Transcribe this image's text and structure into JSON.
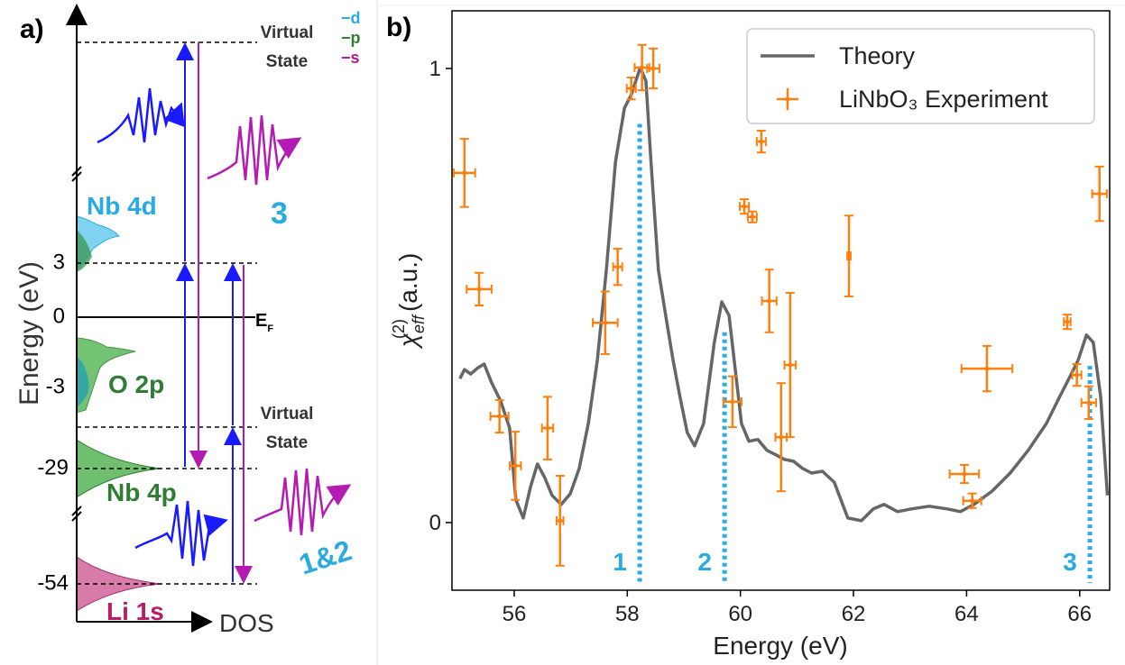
{
  "diagram": {
    "label": "a)",
    "axis_label": "Energy (eV)",
    "x_axis_label": "DOS",
    "ticks": [
      "3",
      "0",
      "-3",
      "-29",
      "-54"
    ],
    "virtual_state_top": [
      "Virtual",
      "State"
    ],
    "virtual_state_bottom": [
      "Virtual",
      "State"
    ],
    "orbital_legend": [
      "−d",
      "−p",
      "−s"
    ],
    "fermi": {
      "base": "E",
      "sub": "F"
    },
    "bands": [
      "Nb 4d",
      "O 2p",
      "Nb 4p",
      "Li 1s"
    ],
    "processes": [
      "3",
      "1&2"
    ]
  },
  "chart_data": {
    "type": "line",
    "title": "b)",
    "xlabel": "Energy (eV)",
    "ylabel": {
      "symbol": "χ",
      "subscript": "eff",
      "superscript": "(2)",
      "unit": "(a.u.)"
    },
    "xlim": [
      54.9,
      66.53
    ],
    "ylim": [
      -0.149,
      1.127
    ],
    "xticks": [
      56,
      58,
      60,
      62,
      64,
      66
    ],
    "yticks": [
      0,
      1
    ],
    "legend": "upper right",
    "series": [
      {
        "name": "Theory",
        "type": "line",
        "color": "#666666",
        "x": [
          55.04,
          55.12,
          55.23,
          55.36,
          55.47,
          55.6,
          55.76,
          55.92,
          56.03,
          56.16,
          56.29,
          56.41,
          56.54,
          56.67,
          56.83,
          56.99,
          57.15,
          57.31,
          57.47,
          57.63,
          57.79,
          57.95,
          58.07,
          58.23,
          58.33,
          58.42,
          58.55,
          58.68,
          58.81,
          58.93,
          59.06,
          59.19,
          59.35,
          59.54,
          59.67,
          59.8,
          59.91,
          60.02,
          60.15,
          60.31,
          60.47,
          60.63,
          60.78,
          60.94,
          61.1,
          61.26,
          61.45,
          61.66,
          61.9,
          62.14,
          62.35,
          62.54,
          62.78,
          63.02,
          63.34,
          63.66,
          63.89,
          64.13,
          64.45,
          64.77,
          65.09,
          65.41,
          65.65,
          65.81,
          65.97,
          66.12,
          66.24,
          66.37,
          66.49
        ],
        "values": [
          0.317,
          0.337,
          0.327,
          0.341,
          0.349,
          0.308,
          0.268,
          0.208,
          0.05,
          0.01,
          0.079,
          0.129,
          0.099,
          0.06,
          0.04,
          0.063,
          0.119,
          0.218,
          0.357,
          0.556,
          0.794,
          0.913,
          0.942,
          1.002,
          0.972,
          0.794,
          0.556,
          0.456,
          0.357,
          0.278,
          0.198,
          0.169,
          0.218,
          0.397,
          0.486,
          0.456,
          0.337,
          0.218,
          0.179,
          0.183,
          0.159,
          0.149,
          0.139,
          0.135,
          0.119,
          0.109,
          0.113,
          0.089,
          0.01,
          0.004,
          0.03,
          0.04,
          0.024,
          0.03,
          0.036,
          0.03,
          0.024,
          0.04,
          0.069,
          0.109,
          0.159,
          0.218,
          0.278,
          0.317,
          0.357,
          0.413,
          0.397,
          0.278,
          0.06
        ]
      },
      {
        "name": "LiNbO₃ Experiment",
        "type": "errorbar",
        "color": "#ff7f0e",
        "x": [
          55.12,
          55.38,
          55.74,
          56.02,
          56.59,
          56.81,
          57.61,
          57.83,
          58.07,
          58.26,
          58.46,
          59.86,
          60.37,
          60.07,
          60.21,
          60.51,
          60.72,
          60.88,
          61.92,
          64.36,
          63.96,
          64.1,
          65.78,
          65.95,
          66.16,
          66.35
        ],
        "values": [
          0.77,
          0.514,
          0.234,
          0.125,
          0.208,
          0.004,
          0.44,
          0.563,
          0.956,
          1.002,
          1.0,
          0.266,
          0.839,
          0.696,
          0.673,
          0.488,
          0.188,
          0.347,
          0.587,
          0.339,
          0.107,
          0.048,
          0.442,
          0.325,
          0.264,
          0.724
        ],
        "xerr": [
          0.19,
          0.22,
          0.16,
          0.1,
          0.1,
          0.06,
          0.22,
          0.08,
          0.08,
          0.13,
          0.11,
          0.16,
          0.08,
          0.08,
          0.08,
          0.13,
          0.1,
          0.1,
          0.03,
          0.45,
          0.26,
          0.16,
          0.06,
          0.08,
          0.13,
          0.13
        ],
        "yerr": [
          0.075,
          0.036,
          0.036,
          0.075,
          0.069,
          0.099,
          0.069,
          0.04,
          0.024,
          0.05,
          0.044,
          0.056,
          0.024,
          0.016,
          0.012,
          0.069,
          0.119,
          0.159,
          0.089,
          0.05,
          0.02,
          0.016,
          0.016,
          0.024,
          0.036,
          0.06
        ]
      }
    ],
    "markers": {
      "color": "#29abe2",
      "x": [
        58.22,
        59.72,
        66.18
      ],
      "values": [
        0.878,
        0.419,
        0.345
      ],
      "labels": [
        "1",
        "2",
        "3"
      ]
    }
  }
}
